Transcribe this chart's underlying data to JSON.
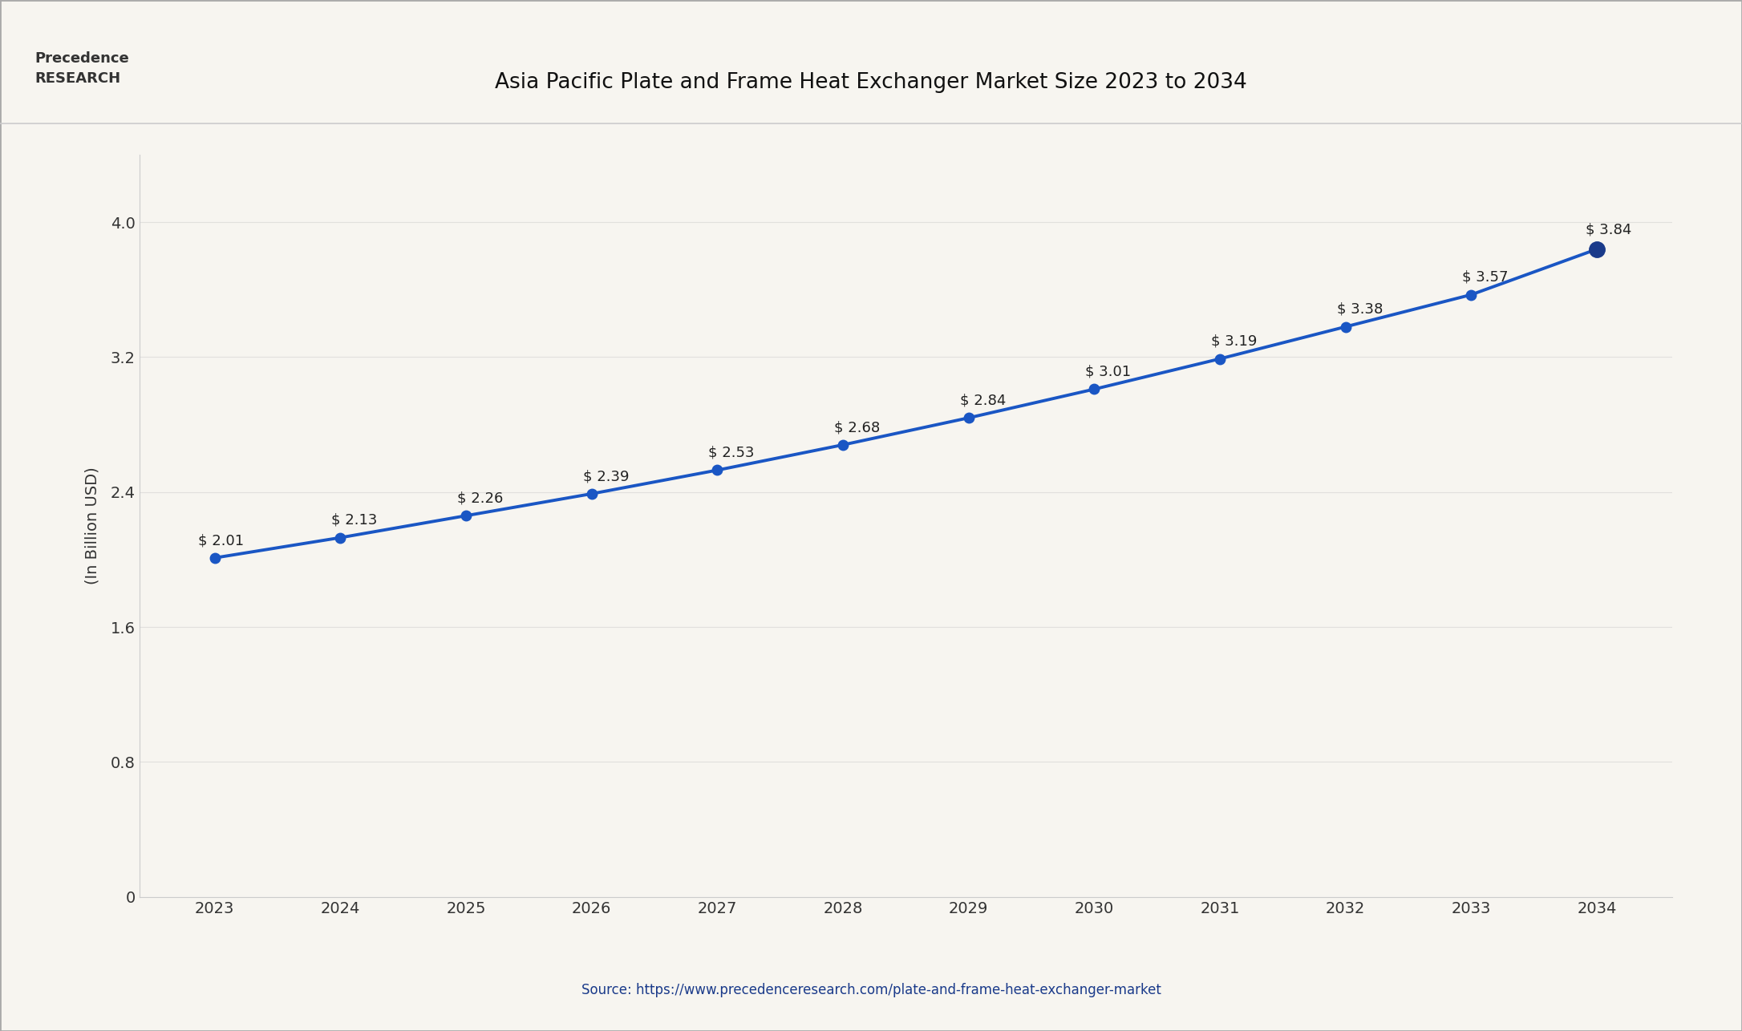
{
  "title": "Asia Pacific Plate and Frame Heat Exchanger Market Size 2023 to 2034",
  "years": [
    2023,
    2024,
    2025,
    2026,
    2027,
    2028,
    2029,
    2030,
    2031,
    2032,
    2033,
    2034
  ],
  "values": [
    2.01,
    2.13,
    2.26,
    2.39,
    2.53,
    2.68,
    2.84,
    3.01,
    3.19,
    3.38,
    3.57,
    3.84
  ],
  "ylabel": "(In Billion USD)",
  "ylim": [
    0,
    4.4
  ],
  "yticks": [
    0,
    0.8,
    1.6,
    2.4,
    3.2,
    4.0
  ],
  "line_color": "#1a56c4",
  "marker_color": "#1a3a8a",
  "bg_color": "#f7f5f0",
  "plot_bg_color": "#f7f5f0",
  "source_text": "Source: https://www.precedenceresearch.com/plate-and-frame-heat-exchanger-market",
  "title_color": "#111111",
  "label_color": "#222222",
  "source_color": "#1a3a8a",
  "border_color": "#cccccc"
}
